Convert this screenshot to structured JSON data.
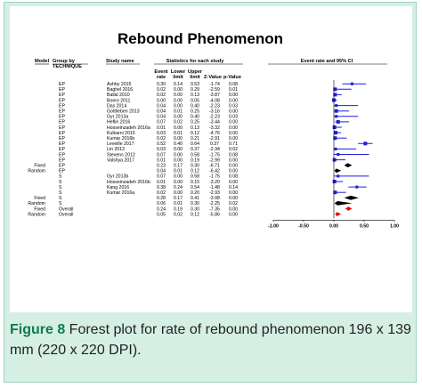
{
  "caption": {
    "label": "Figure 8",
    "text": " Forest plot for rate of rebound phenomenon 196 x 139 mm (220 x 220 DPI)."
  },
  "chart_data": {
    "type": "forest",
    "title": "Rebound Phenomenon",
    "headers": {
      "model": "Model",
      "group_by": "Group by",
      "group_by_sub": "TECHNIQUE",
      "study_name": "Study name",
      "stats_title": "Statistics for each study",
      "plot_title": "Event rate and 95% CI",
      "event_rate": [
        "Event",
        "rate"
      ],
      "lower_limit": [
        "Lower",
        "limit"
      ],
      "upper_limit": [
        "Upper",
        "limit"
      ],
      "z_value": "Z-Value",
      "p_value": "p-Value"
    },
    "xlim": [
      -1.0,
      1.0
    ],
    "xticks": [
      "-1.00",
      "-0.50",
      "0.00",
      "0.50",
      "1.00"
    ],
    "colors": {
      "study": "#1f1fd6",
      "pooled": "#000000",
      "overall": "#e01010"
    },
    "rows": [
      {
        "model": "",
        "group": "EP",
        "study": "Ashby 2015",
        "rate": "0.30",
        "lower": "0.14",
        "upper": "0.53",
        "z": "-1.74",
        "p": "0.08",
        "kind": "study",
        "r": 0.3,
        "lo": 0.14,
        "hi": 0.53
      },
      {
        "model": "",
        "group": "EP",
        "study": "Baghel 2016",
        "rate": "0.02",
        "lower": "0.00",
        "upper": "0.29",
        "z": "-2.59",
        "p": "0.01",
        "kind": "study",
        "r": 0.02,
        "lo": 0.0,
        "hi": 0.29
      },
      {
        "model": "",
        "group": "EP",
        "study": "Ballal 2010",
        "rate": "0.02",
        "lower": "0.00",
        "upper": "0.13",
        "z": "-3.87",
        "p": "0.00",
        "kind": "study",
        "r": 0.02,
        "lo": 0.0,
        "hi": 0.13
      },
      {
        "model": "",
        "group": "EP",
        "study": "Boero 2011",
        "rate": "0.00",
        "lower": "0.00",
        "upper": "0.05",
        "z": "-4.08",
        "p": "0.00",
        "kind": "study",
        "r": 0.0,
        "lo": 0.0,
        "hi": 0.05
      },
      {
        "model": "",
        "group": "EP",
        "study": "Das 2014",
        "rate": "0.04",
        "lower": "0.00",
        "upper": "0.40",
        "z": "-2.23",
        "p": "0.03",
        "kind": "study",
        "r": 0.04,
        "lo": 0.0,
        "hi": 0.4
      },
      {
        "model": "",
        "group": "EP",
        "study": "Gottlieben 2013",
        "rate": "0.04",
        "lower": "0.01",
        "upper": "0.25",
        "z": "-3.16",
        "p": "0.00",
        "kind": "study",
        "r": 0.04,
        "lo": 0.01,
        "hi": 0.25
      },
      {
        "model": "",
        "group": "EP",
        "study": "Gyr 2013a",
        "rate": "0.04",
        "lower": "0.00",
        "upper": "0.40",
        "z": "-2.23",
        "p": "0.03",
        "kind": "study",
        "r": 0.04,
        "lo": 0.0,
        "hi": 0.4
      },
      {
        "model": "",
        "group": "EP",
        "study": "Heflin 2016",
        "rate": "0.07",
        "lower": "0.02",
        "upper": "0.25",
        "z": "-3.44",
        "p": "0.00",
        "kind": "study",
        "r": 0.07,
        "lo": 0.02,
        "hi": 0.25
      },
      {
        "model": "",
        "group": "EP",
        "study": "Hosseinzadeh 2016a",
        "rate": "0.01",
        "lower": "0.00",
        "upper": "0.13",
        "z": "-3.32",
        "p": "0.00",
        "kind": "study",
        "r": 0.01,
        "lo": 0.0,
        "hi": 0.13
      },
      {
        "model": "",
        "group": "EP",
        "study": "Kulkarni 2015",
        "rate": "0.03",
        "lower": "0.01",
        "upper": "0.12",
        "z": "-4.76",
        "p": "0.00",
        "kind": "study",
        "r": 0.03,
        "lo": 0.01,
        "hi": 0.12
      },
      {
        "model": "",
        "group": "EP",
        "study": "Kumar 2016b",
        "rate": "0.02",
        "lower": "0.00",
        "upper": "0.21",
        "z": "-2.91",
        "p": "0.00",
        "kind": "study",
        "r": 0.02,
        "lo": 0.0,
        "hi": 0.21
      },
      {
        "model": "",
        "group": "EP",
        "study": "Leveille 2017",
        "rate": "0.52",
        "lower": "0.40",
        "upper": "0.64",
        "z": "0.37",
        "p": "0.71",
        "kind": "study",
        "r": 0.52,
        "lo": 0.4,
        "hi": 0.64
      },
      {
        "model": "",
        "group": "EP",
        "study": "Lin 2013",
        "rate": "0.03",
        "lower": "0.00",
        "upper": "0.37",
        "z": "-2.34",
        "p": "0.02",
        "kind": "study",
        "r": 0.03,
        "lo": 0.0,
        "hi": 0.37
      },
      {
        "model": "",
        "group": "EP",
        "study": "Stevens 2012",
        "rate": "0.07",
        "lower": "0.00",
        "upper": "0.58",
        "z": "-1.75",
        "p": "0.08",
        "kind": "study",
        "r": 0.07,
        "lo": 0.0,
        "hi": 0.58
      },
      {
        "model": "",
        "group": "EP",
        "study": "Valshya 2017",
        "rate": "0.01",
        "lower": "0.00",
        "upper": "0.19",
        "z": "-2.99",
        "p": "0.00",
        "kind": "study",
        "r": 0.01,
        "lo": 0.0,
        "hi": 0.19
      },
      {
        "model": "Fixed",
        "group": "EP",
        "study": "",
        "rate": "0.23",
        "lower": "0.17",
        "upper": "0.30",
        "z": "-6.71",
        "p": "0.00",
        "kind": "pooled",
        "r": 0.23,
        "lo": 0.17,
        "hi": 0.3
      },
      {
        "model": "Random",
        "group": "EP",
        "study": "",
        "rate": "0.04",
        "lower": "0.01",
        "upper": "0.12",
        "z": "-6.42",
        "p": "0.00",
        "kind": "pooled",
        "r": 0.04,
        "lo": 0.01,
        "hi": 0.12
      },
      {
        "model": "",
        "group": "S",
        "study": "Gyr 2013b",
        "rate": "0.07",
        "lower": "0.00",
        "upper": "0.58",
        "z": "-1.75",
        "p": "0.08",
        "kind": "study",
        "r": 0.07,
        "lo": 0.0,
        "hi": 0.58
      },
      {
        "model": "",
        "group": "S",
        "study": "Hosseinzadeh 2016b",
        "rate": "0.01",
        "lower": "0.00",
        "upper": "0.15",
        "z": "-3.20",
        "p": "0.00",
        "kind": "study",
        "r": 0.01,
        "lo": 0.0,
        "hi": 0.15
      },
      {
        "model": "",
        "group": "S",
        "study": "Kang 2016",
        "rate": "0.38",
        "lower": "0.24",
        "upper": "0.54",
        "z": "-1.48",
        "p": "0.14",
        "kind": "study",
        "r": 0.38,
        "lo": 0.24,
        "hi": 0.54
      },
      {
        "model": "",
        "group": "S",
        "study": "Kumar 2016a",
        "rate": "0.02",
        "lower": "0.00",
        "upper": "0.20",
        "z": "-2.93",
        "p": "0.00",
        "kind": "study",
        "r": 0.02,
        "lo": 0.0,
        "hi": 0.2
      },
      {
        "model": "Fixed",
        "group": "S",
        "study": "",
        "rate": "0.28",
        "lower": "0.17",
        "upper": "0.41",
        "z": "-3.08",
        "p": "0.00",
        "kind": "pooled",
        "r": 0.28,
        "lo": 0.17,
        "hi": 0.41
      },
      {
        "model": "Random",
        "group": "S",
        "study": "",
        "rate": "0.06",
        "lower": "0.01",
        "upper": "0.30",
        "z": "-2.25",
        "p": "0.02",
        "kind": "pooled",
        "r": 0.06,
        "lo": 0.01,
        "hi": 0.3
      },
      {
        "model": "Fixed",
        "group": "Overall",
        "study": "",
        "rate": "0.24",
        "lower": "0.19",
        "upper": "0.30",
        "z": "-7.35",
        "p": "0.00",
        "kind": "overall",
        "r": 0.24,
        "lo": 0.19,
        "hi": 0.3
      },
      {
        "model": "Random",
        "group": "Overall",
        "study": "",
        "rate": "0.05",
        "lower": "0.02",
        "upper": "0.12",
        "z": "-5.86",
        "p": "0.00",
        "kind": "overall",
        "r": 0.05,
        "lo": 0.02,
        "hi": 0.12
      }
    ]
  }
}
